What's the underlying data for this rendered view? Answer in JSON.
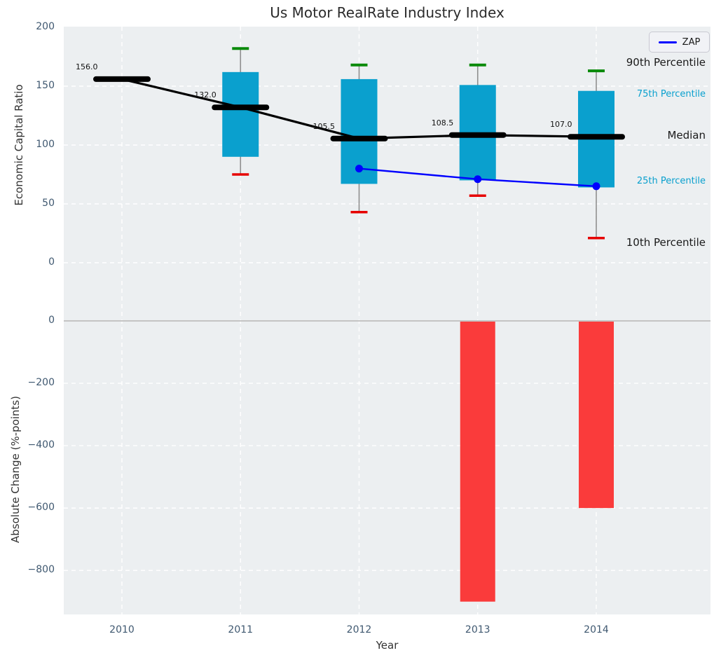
{
  "title": "Us Motor RealRate Industry Index",
  "xlabel": "Year",
  "legend": {
    "label": "ZAP",
    "line_color": "#0000ff"
  },
  "colors": {
    "box_fill": "#0aa0ce",
    "bar_negative": "#fa3b3b",
    "median_line": "#000000",
    "trend_line": "#000000",
    "zap_line": "#0000ff",
    "p90_cap": "#0a8a0a",
    "p10_cap": "#e60000",
    "whisker": "#8f8f8f",
    "plot_bg": "#eceff1",
    "grid": "#ffffff",
    "zero_line": "#c4c4c4",
    "tick_label": "#3f5870",
    "text": "#333333",
    "percentile_label_accent": "#0aa0ce"
  },
  "right_labels": [
    {
      "text": "90th Percentile",
      "value": 169,
      "color": "#1a1a1a",
      "size": 15
    },
    {
      "text": "75th Percentile",
      "value": 142,
      "color": "#0aa0ce",
      "size": 13
    },
    {
      "text": "Median",
      "value": 107,
      "color": "#1a1a1a",
      "size": 15
    },
    {
      "text": "25th Percentile",
      "value": 68,
      "color": "#0aa0ce",
      "size": 13
    },
    {
      "text": "10th Percentile",
      "value": 16,
      "color": "#1a1a1a",
      "size": 15
    }
  ],
  "chart_data": [
    {
      "type": "box",
      "title": "Us Motor RealRate Industry Index",
      "xlabel": "Year",
      "ylabel": "Economic Capital Ratio",
      "legend": [
        "ZAP"
      ],
      "legend_position": "upper right",
      "grid": true,
      "categories": [
        "2010",
        "2011",
        "2012",
        "2013",
        "2014"
      ],
      "ylim": [
        -25,
        200
      ],
      "yticks": [
        200,
        150,
        100,
        50,
        0
      ],
      "boxes": [
        {
          "year": "2010",
          "median": 156.0,
          "median_label": "156.0",
          "q1": null,
          "q3": null,
          "p10": null,
          "p90": null
        },
        {
          "year": "2011",
          "median": 132.0,
          "median_label": "132.0",
          "q1": 90,
          "q3": 162,
          "p10": 75,
          "p90": 182
        },
        {
          "year": "2012",
          "median": 105.5,
          "median_label": "105.5",
          "q1": 67,
          "q3": 156,
          "p10": 43,
          "p90": 168
        },
        {
          "year": "2013",
          "median": 108.5,
          "median_label": "108.5",
          "q1": 70,
          "q3": 151,
          "p10": 57,
          "p90": 168
        },
        {
          "year": "2014",
          "median": 107.0,
          "median_label": "107.0",
          "q1": 64,
          "q3": 146,
          "p10": 21,
          "p90": 163
        }
      ],
      "series": [
        {
          "name": "ZAP",
          "x": [
            "2012",
            "2013",
            "2014"
          ],
          "values": [
            80,
            71,
            65
          ]
        }
      ]
    },
    {
      "type": "bar",
      "ylabel": "Absolute Change (%-points)",
      "grid": true,
      "categories": [
        "2010",
        "2011",
        "2012",
        "2013",
        "2014"
      ],
      "values": [
        null,
        null,
        null,
        -900,
        -600
      ],
      "yticks": [
        0,
        -200,
        -400,
        -600,
        -800
      ],
      "ylim": [
        90,
        -940
      ]
    }
  ]
}
